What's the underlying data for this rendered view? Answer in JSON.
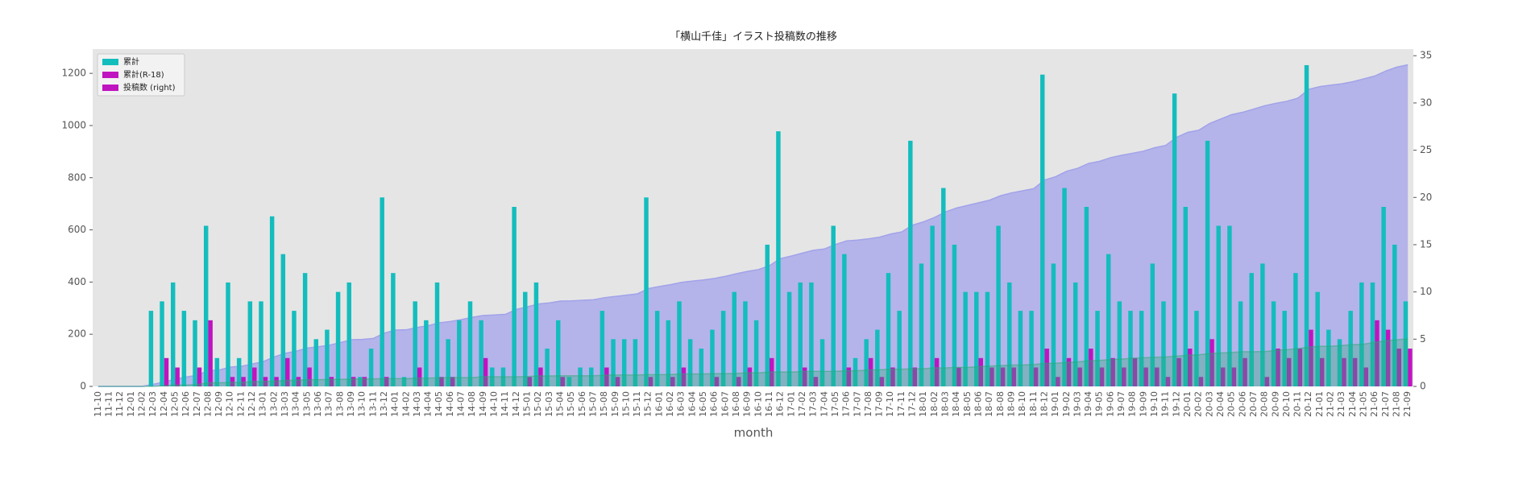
{
  "chart_data": {
    "type": "combo",
    "title": "「横山千佳」イラスト投稿数の推移",
    "xlabel": "month",
    "categories": [
      "11-10",
      "11-11",
      "11-12",
      "12-01",
      "12-02",
      "12-03",
      "12-04",
      "12-05",
      "12-06",
      "12-07",
      "12-08",
      "12-09",
      "12-10",
      "12-11",
      "12-12",
      "13-01",
      "13-02",
      "13-03",
      "13-04",
      "13-05",
      "13-06",
      "13-07",
      "13-08",
      "13-09",
      "13-10",
      "13-11",
      "13-12",
      "14-01",
      "14-02",
      "14-03",
      "14-04",
      "14-05",
      "14-06",
      "14-07",
      "14-08",
      "14-09",
      "14-10",
      "14-11",
      "14-12",
      "15-01",
      "15-02",
      "15-03",
      "15-04",
      "15-05",
      "15-06",
      "15-07",
      "15-08",
      "15-09",
      "15-10",
      "15-11",
      "15-12",
      "16-01",
      "16-02",
      "16-03",
      "16-04",
      "16-05",
      "16-06",
      "16-07",
      "16-08",
      "16-09",
      "16-10",
      "16-11",
      "16-12",
      "17-01",
      "17-02",
      "17-03",
      "17-04",
      "17-05",
      "17-06",
      "17-07",
      "17-08",
      "17-09",
      "17-10",
      "17-11",
      "17-12",
      "18-01",
      "18-02",
      "18-03",
      "18-04",
      "18-05",
      "18-06",
      "18-07",
      "18-08",
      "18-09",
      "18-10",
      "18-11",
      "18-12",
      "19-01",
      "19-02",
      "19-03",
      "19-04",
      "19-05",
      "19-06",
      "19-07",
      "19-08",
      "19-09",
      "19-10",
      "19-11",
      "19-12",
      "20-01",
      "20-02",
      "20-03",
      "20-04",
      "20-05",
      "20-06",
      "20-07",
      "20-08",
      "20-09",
      "20-10",
      "20-11",
      "20-12",
      "21-01",
      "21-02",
      "21-03",
      "21-04",
      "21-05",
      "21-06",
      "21-07",
      "21-08",
      "21-09"
    ],
    "series": [
      {
        "name": "累計",
        "type": "area",
        "color": "#b4b4ea",
        "line_color": "#a2a2ea",
        "values": [
          0,
          0,
          0,
          0,
          0,
          8,
          17,
          28,
          36,
          43,
          60,
          63,
          74,
          77,
          86,
          95,
          113,
          127,
          135,
          147,
          152,
          158,
          168,
          179,
          180,
          184,
          204,
          216,
          217,
          226,
          233,
          244,
          249,
          256,
          265,
          272,
          274,
          276,
          295,
          305,
          316,
          320,
          327,
          328,
          330,
          332,
          340,
          345,
          350,
          355,
          375,
          383,
          390,
          399,
          404,
          408,
          414,
          422,
          432,
          441,
          448,
          463,
          490,
          500,
          511,
          522,
          527,
          544,
          558,
          561,
          566,
          572,
          584,
          592,
          618,
          631,
          648,
          669,
          684,
          694,
          704,
          714,
          731,
          742,
          750,
          758,
          791,
          804,
          825,
          836,
          855,
          863,
          877,
          886,
          894,
          902,
          915,
          924,
          955,
          974,
          982,
          1008,
          1025,
          1042,
          1051,
          1063,
          1076,
          1085,
          1093,
          1105,
          1139,
          1149,
          1155,
          1160,
          1168,
          1179,
          1190,
          1209,
          1224,
          1233
        ]
      },
      {
        "name": "累計(R-18)",
        "type": "area",
        "color": "rgba(40,170,120,0.35)",
        "line_color": "rgba(40,170,120,0.5)",
        "values": [
          0,
          0,
          0,
          0,
          0,
          0,
          3,
          5,
          5,
          7,
          14,
          14,
          15,
          16,
          18,
          19,
          20,
          23,
          24,
          26,
          26,
          27,
          27,
          28,
          29,
          29,
          30,
          30,
          30,
          32,
          32,
          33,
          34,
          34,
          34,
          37,
          37,
          37,
          37,
          38,
          40,
          40,
          41,
          41,
          41,
          41,
          43,
          44,
          44,
          44,
          45,
          45,
          46,
          48,
          48,
          48,
          49,
          49,
          50,
          52,
          52,
          55,
          55,
          55,
          57,
          58,
          58,
          58,
          60,
          60,
          63,
          64,
          66,
          66,
          68,
          68,
          71,
          71,
          73,
          73,
          76,
          78,
          80,
          82,
          82,
          84,
          88,
          89,
          92,
          94,
          98,
          100,
          103,
          105,
          108,
          110,
          112,
          113,
          116,
          120,
          121,
          126,
          128,
          130,
          133,
          133,
          134,
          138,
          141,
          145,
          151,
          154,
          154,
          157,
          160,
          162,
          169,
          175,
          179,
          183
        ]
      },
      {
        "name": "投稿数 (right)",
        "type": "bar",
        "axis": "y2",
        "color": "#14bdbd",
        "values": [
          0,
          0,
          0,
          0,
          0,
          8,
          9,
          11,
          8,
          7,
          17,
          3,
          11,
          3,
          9,
          9,
          18,
          14,
          8,
          12,
          5,
          6,
          10,
          11,
          1,
          4,
          20,
          12,
          1,
          9,
          7,
          11,
          5,
          7,
          9,
          7,
          2,
          2,
          19,
          10,
          11,
          4,
          7,
          1,
          2,
          2,
          8,
          5,
          5,
          5,
          20,
          8,
          7,
          9,
          5,
          4,
          6,
          8,
          10,
          9,
          7,
          15,
          27,
          10,
          11,
          11,
          5,
          17,
          14,
          3,
          5,
          6,
          12,
          8,
          26,
          13,
          17,
          21,
          15,
          10,
          10,
          10,
          17,
          11,
          8,
          8,
          33,
          13,
          21,
          11,
          19,
          8,
          14,
          9,
          8,
          8,
          13,
          9,
          31,
          19,
          8,
          26,
          17,
          17,
          9,
          12,
          13,
          9,
          8,
          12,
          34,
          10,
          6,
          5,
          8,
          11,
          11,
          19,
          15,
          9
        ]
      },
      {
        "type": "bar",
        "axis": "y2",
        "color": "#c014c0",
        "values": [
          0,
          0,
          0,
          0,
          0,
          0,
          3,
          2,
          0,
          2,
          7,
          0,
          1,
          1,
          2,
          1,
          1,
          3,
          1,
          2,
          0,
          1,
          0,
          1,
          1,
          0,
          1,
          0,
          0,
          2,
          0,
          1,
          1,
          0,
          0,
          3,
          0,
          0,
          0,
          1,
          2,
          0,
          1,
          0,
          0,
          0,
          2,
          1,
          0,
          0,
          1,
          0,
          1,
          2,
          0,
          0,
          1,
          0,
          1,
          2,
          0,
          3,
          0,
          0,
          2,
          1,
          0,
          0,
          2,
          0,
          3,
          1,
          2,
          0,
          2,
          0,
          3,
          0,
          2,
          0,
          3,
          2,
          2,
          2,
          0,
          2,
          4,
          1,
          3,
          2,
          4,
          2,
          3,
          2,
          3,
          2,
          2,
          1,
          3,
          4,
          1,
          5,
          2,
          2,
          3,
          0,
          1,
          4,
          3,
          4,
          6,
          3,
          0,
          3,
          3,
          2,
          7,
          6,
          4,
          4
        ]
      }
    ],
    "ylim": [
      0,
      1293
    ],
    "yticks": [
      0,
      200,
      400,
      600,
      800,
      1000,
      1200
    ],
    "y2lim": [
      0,
      35.7
    ],
    "y2ticks": [
      0,
      5,
      10,
      15,
      20,
      25,
      30,
      35
    ],
    "grid": false,
    "legend": {
      "loc": "upper left",
      "colors": [
        "#14bdbd",
        "#c014c0",
        "#c014c0"
      ]
    }
  }
}
